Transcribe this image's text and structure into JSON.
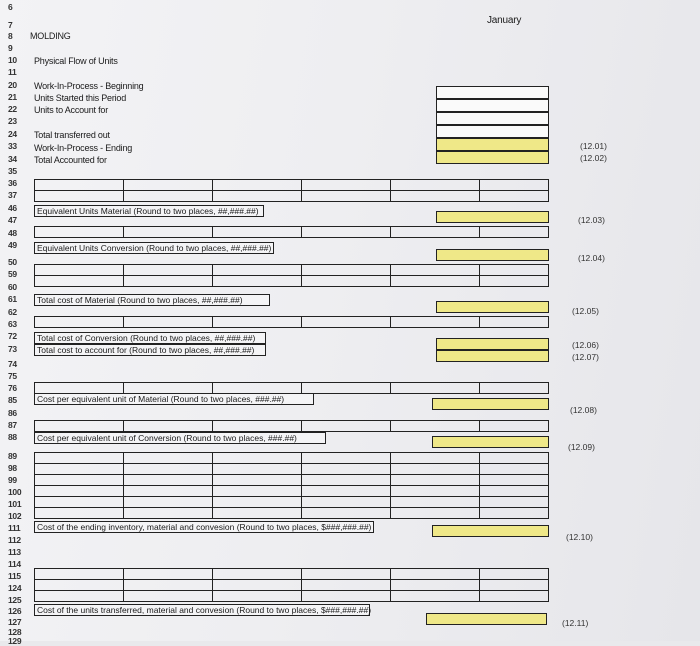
{
  "header": {
    "month": "January",
    "department": "MOLDING"
  },
  "rows": {
    "r6": "6",
    "r7": "7",
    "r8": "8",
    "r9": "9",
    "r10": "10",
    "r11": "11",
    "r20": "20",
    "r21": "21",
    "r22": "22",
    "r23": "23",
    "r24": "24",
    "r33": "33",
    "r34": "34",
    "r35": "35",
    "r36": "36",
    "r37": "37",
    "r46": "46",
    "r47": "47",
    "r48": "48",
    "r49": "49",
    "r50": "50",
    "r59": "59",
    "r60": "60",
    "r61": "61",
    "r62": "62",
    "r63": "63",
    "r72": "72",
    "r73": "73",
    "r74": "74",
    "r75": "75",
    "r76": "76",
    "r85": "85",
    "r86": "86",
    "r87": "87",
    "r88": "88",
    "r89": "89",
    "r98": "98",
    "r99": "99",
    "r100": "100",
    "r101": "101",
    "r102": "102",
    "r111": "111",
    "r112": "112",
    "r113": "113",
    "r114": "114",
    "r115": "115",
    "r124": "124",
    "r125": "125",
    "r126": "126",
    "r127": "127",
    "r128": "128",
    "r129": "129"
  },
  "labels": {
    "physical_flow": "Physical Flow of Units",
    "wip_beginning": "Work-In-Process - Beginning",
    "units_started": "Units Started this Period",
    "units_to_account": "Units to Account for",
    "total_transferred": "Total transferred out",
    "wip_ending": "Work-In-Process - Ending",
    "total_accounted": "Total Accounted for",
    "eu_material": "Equivalent Units Material (Round to two places, ##,###.##)",
    "eu_conversion": "Equivalent Units Conversion (Round to two places, ##,###.##)",
    "total_cost_material": "Total cost of Material (Round to two places, ##,###.##)",
    "total_cost_conversion": "Total cost of Conversion (Round to two places, ##,###.##)",
    "total_cost_account": "Total cost to account for (Round to two places, ##,###.##)",
    "cost_eu_material": "Cost per equivalent unit of Material (Round to two places, ###.##)",
    "cost_eu_conversion": "Cost per equivalent unit of Conversion (Round to two places, ###.##)",
    "cost_ending_inventory": "Cost of the ending inventory, material and convesion (Round to two places, $###,###.##)",
    "cost_transferred": "Cost of the units transferred, material and convesion (Round to two places, $###,###.##)"
  },
  "refs": {
    "r1201": "(12.01)",
    "r1202": "(12.02)",
    "r1203": "(12.03)",
    "r1204": "(12.04)",
    "r1205": "(12.05)",
    "r1206": "(12.06)",
    "r1207": "(12.07)",
    "r1208": "(12.08)",
    "r1209": "(12.09)",
    "r1210": "(12.10)",
    "r1211": "(12.11)"
  },
  "colors": {
    "input_fill": "#efe888",
    "grid": "#222222",
    "paper": "#eeeef1"
  }
}
